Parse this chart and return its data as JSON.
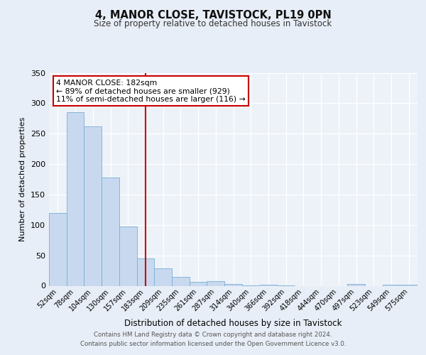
{
  "title": "4, MANOR CLOSE, TAVISTOCK, PL19 0PN",
  "subtitle": "Size of property relative to detached houses in Tavistock",
  "xlabel": "Distribution of detached houses by size in Tavistock",
  "ylabel": "Number of detached properties",
  "bin_labels": [
    "52sqm",
    "78sqm",
    "104sqm",
    "130sqm",
    "157sqm",
    "183sqm",
    "209sqm",
    "235sqm",
    "261sqm",
    "287sqm",
    "314sqm",
    "340sqm",
    "366sqm",
    "392sqm",
    "418sqm",
    "444sqm",
    "470sqm",
    "497sqm",
    "523sqm",
    "549sqm",
    "575sqm"
  ],
  "bar_values": [
    120,
    285,
    262,
    178,
    97,
    45,
    29,
    15,
    7,
    8,
    3,
    1,
    2,
    1,
    0,
    0,
    0,
    3,
    0,
    2,
    2
  ],
  "bar_color": "#c8d9ef",
  "bar_edge_color": "#7aadd4",
  "vline_x": 5,
  "vline_color": "#cc0000",
  "annotation_text": "4 MANOR CLOSE: 182sqm\n← 89% of detached houses are smaller (929)\n11% of semi-detached houses are larger (116) →",
  "annotation_box_color": "#ffffff",
  "annotation_box_edge_color": "#cc0000",
  "ylim": [
    0,
    350
  ],
  "yticks": [
    0,
    50,
    100,
    150,
    200,
    250,
    300,
    350
  ],
  "bg_color": "#e8eef7",
  "plot_bg_color": "#edf2f9",
  "footer_line1": "Contains HM Land Registry data © Crown copyright and database right 2024.",
  "footer_line2": "Contains public sector information licensed under the Open Government Licence v3.0."
}
